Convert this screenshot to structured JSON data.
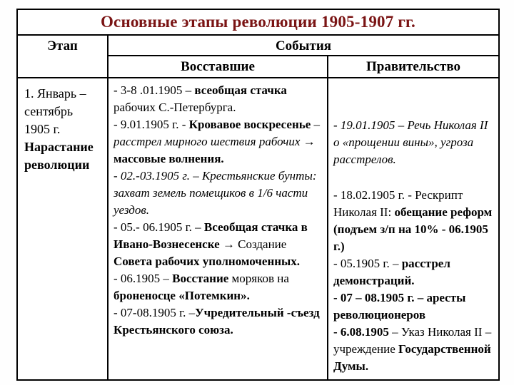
{
  "title": {
    "text": "Основные этапы революции 1905-1907 гг.",
    "color": "#7a1414"
  },
  "colors": {
    "border": "#000000",
    "body_text": "#000000",
    "background": "#ffffff"
  },
  "table": {
    "headers": {
      "stage": "Этап",
      "events": "События",
      "rebels": "Восставшие",
      "government": "Правительство"
    },
    "row": {
      "stage_runs": [
        {
          "t": "1. Январь – сентябрь 1905 г. "
        },
        {
          "t": "Нарастание революции",
          "b": true
        }
      ],
      "rebels_entries": [
        [
          {
            "t": "- 3-8 .01.1905 – "
          },
          {
            "t": "всеобщая стачка",
            "b": true
          },
          {
            "t": " рабочих С.-Петербурга."
          }
        ],
        [
          {
            "t": "- 9.01.1905 г. - "
          },
          {
            "t": "Кровавое воскресенье",
            "b": true
          },
          {
            "t": " – "
          },
          {
            "t": "расстрел мирного шествия рабочих",
            "i": true
          },
          {
            "t": " → "
          },
          {
            "t": "массовые волнения.",
            "b": true
          }
        ],
        [
          {
            "t": "- 02.-03.1905 г. – Крестьянские бунты: захват земель помещиков в 1/6 части уездов.",
            "i": true
          }
        ],
        [
          {
            "t": "- 05.- 06.1905 г. – "
          },
          {
            "t": "Всеобщая стачка в Ивано-Вознесенске",
            "b": true
          },
          {
            "t": " → Создание "
          },
          {
            "t": "Совета рабочих уполномоченных.",
            "b": true
          }
        ],
        [
          {
            "t": "- 06.1905 – "
          },
          {
            "t": "Восстание",
            "b": true
          },
          {
            "t": " моряков на "
          },
          {
            "t": "броненосце «Потемкин».",
            "b": true
          }
        ],
        [
          {
            "t": "- 07-08.1905 г. –"
          },
          {
            "t": "Учредительный -съезд Крестьянского союза.",
            "b": true
          }
        ]
      ],
      "government_entries": [
        [
          {
            "t": "- 19.01.1905 – Речь Николая II о «прощении вины», угроза расстрелов.",
            "i": true
          }
        ],
        [
          {
            "t": "- 18.02.1905 г. - Рескрипт Николая II: "
          },
          {
            "t": "обещание реформ (подъем з/п на 10% - 06.1905 г.)",
            "b": true
          }
        ],
        [
          {
            "t": "- 05.1905 г. – "
          },
          {
            "t": "расстрел демонстраций.",
            "b": true
          }
        ],
        [
          {
            "t": "- 07 – 08.1905 г. – аресты революционеров",
            "b": true
          }
        ],
        [
          {
            "t": "- 6.08.1905",
            "b": true
          },
          {
            "t": " – Указ Николая II – учреждение "
          },
          {
            "t": "Государственной Думы.",
            "b": true
          }
        ]
      ]
    }
  }
}
